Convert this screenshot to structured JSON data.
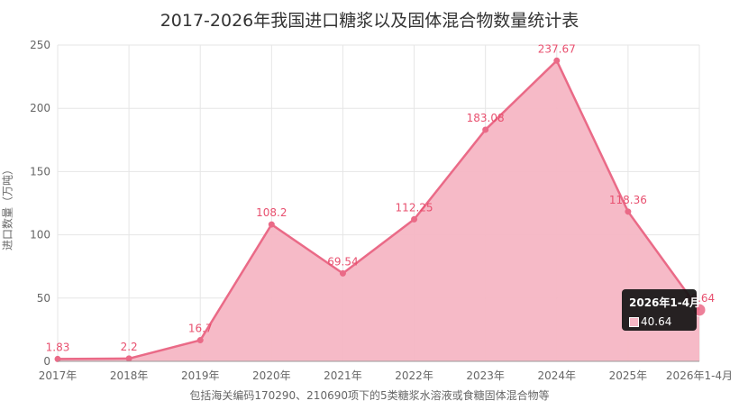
{
  "chart_data": {
    "type": "area",
    "title": "2017-2026年我国进口糖浆以及固体混合物数量统计表",
    "ylabel": "进口数量（万吨）",
    "xlabel": "",
    "ylim": [
      0,
      250
    ],
    "yticks": [
      "0",
      "50",
      "100",
      "150",
      "200",
      "250"
    ],
    "categories": [
      "2017年",
      "2018年",
      "2019年",
      "2020年",
      "2021年",
      "2022年",
      "2023年",
      "2024年",
      "2025年",
      "2026年1-4月"
    ],
    "values": [
      1.83,
      2.2,
      16.7,
      108.2,
      69.54,
      112.25,
      183.08,
      237.67,
      118.36,
      40.64
    ],
    "data_labels": [
      "1.83",
      "2.2",
      "16.7",
      "108.2",
      "69.54",
      "112.25",
      "183.08",
      "237.67",
      "118.36",
      "40.64"
    ],
    "grid": true,
    "footnote": "包括海关编码170290、210690项下的5类糖浆水溶液或食糖固体混合物等",
    "tooltip": {
      "title": "2026年1-4月",
      "value": "40.64"
    },
    "colors": {
      "line": "#ea6a87",
      "fill": "#f5b6c4",
      "label": "#e8506f",
      "grid": "#e6e6e6",
      "axis": "#999999"
    }
  }
}
